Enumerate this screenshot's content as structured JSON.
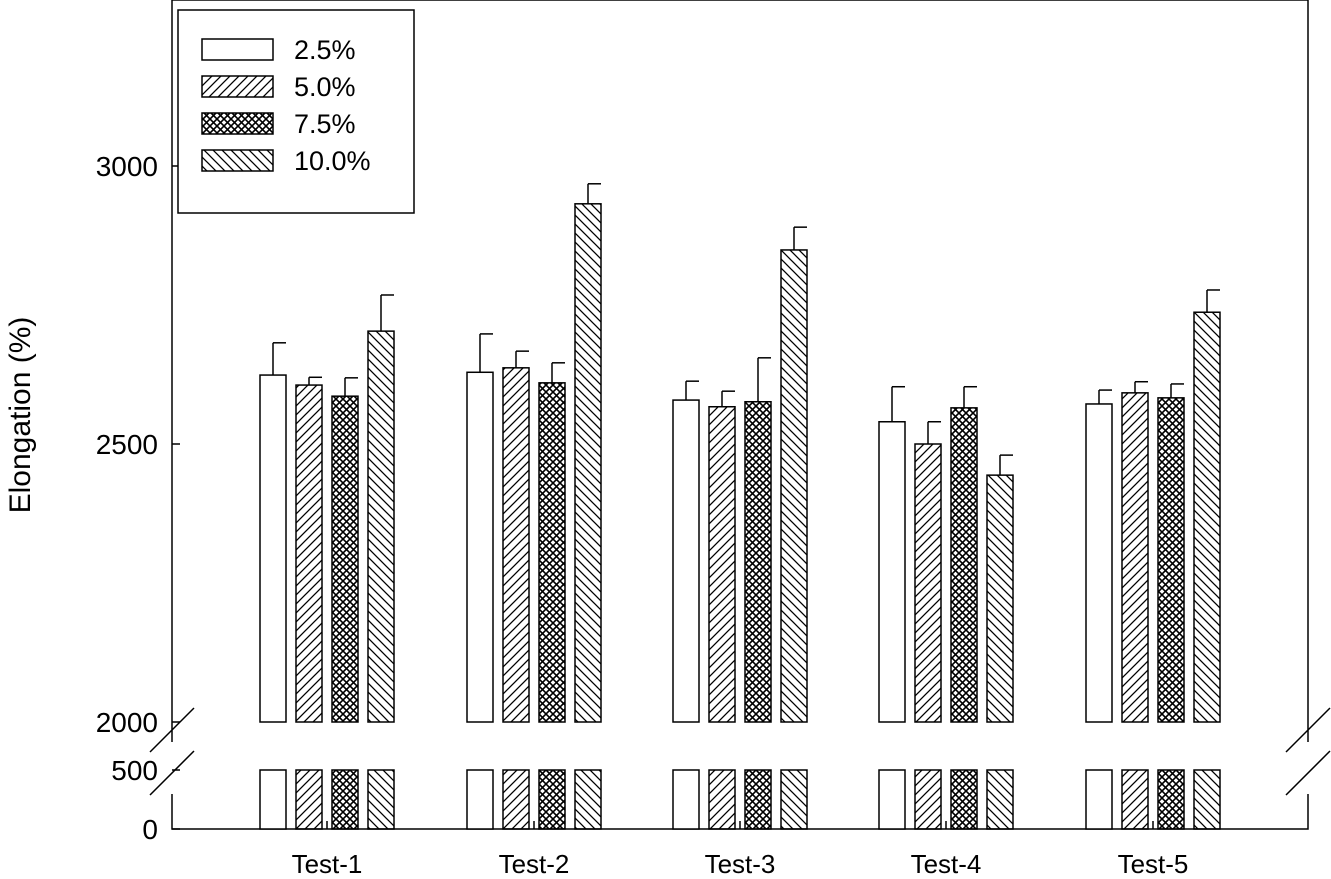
{
  "chart_data": {
    "type": "bar",
    "title": "",
    "xlabel": "",
    "ylabel": "Elongation (%)",
    "categories": [
      "Test-1",
      "Test-2",
      "Test-3",
      "Test-4",
      "Test-5"
    ],
    "y_ticks": [
      "0",
      "500",
      "2000",
      "2500",
      "3000"
    ],
    "axis_break": {
      "lower": [
        0,
        500
      ],
      "upper": [
        2000,
        3300
      ]
    },
    "legend_position": "top-left",
    "series": [
      {
        "name": "2.5%",
        "pattern": "open",
        "values": [
          2624,
          2629,
          2579,
          2540,
          2572
        ],
        "errors": [
          58,
          69,
          34,
          63,
          25
        ]
      },
      {
        "name": "5.0%",
        "pattern": "diagonal-up",
        "values": [
          2606,
          2637,
          2567,
          2500,
          2592
        ],
        "errors": [
          14,
          30,
          28,
          40,
          20
        ]
      },
      {
        "name": "7.5%",
        "pattern": "crosshatch",
        "values": [
          2586,
          2610,
          2576,
          2565,
          2583
        ],
        "errors": [
          33,
          36,
          79,
          38,
          25
        ]
      },
      {
        "name": "10.0%",
        "pattern": "diagonal-down",
        "values": [
          2703,
          2932,
          2849,
          2444,
          2737
        ],
        "errors": [
          65,
          36,
          41,
          36,
          40
        ]
      }
    ]
  }
}
